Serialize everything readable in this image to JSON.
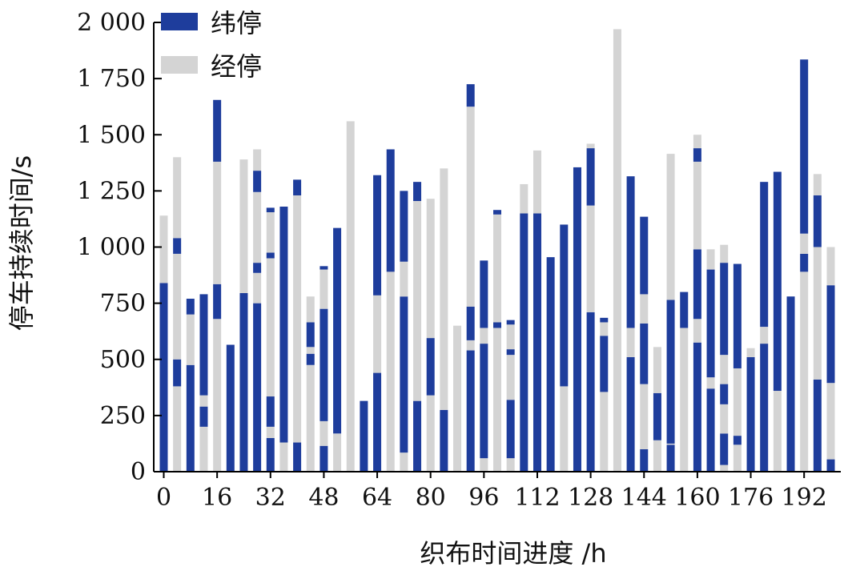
{
  "chart_data": {
    "type": "bar",
    "stacked": true,
    "xlabel": "织布时间进度 /h",
    "ylabel": "停车持续时间/s",
    "ylim": [
      0,
      2000
    ],
    "yticks": [
      0,
      250,
      500,
      750,
      1000,
      1250,
      1500,
      1750,
      2000
    ],
    "ytick_labels": [
      "0",
      "250",
      "500",
      "750",
      "1 000",
      "1 250",
      "1 500",
      "1 750",
      "2 000"
    ],
    "xticks": [
      0,
      16,
      32,
      48,
      64,
      80,
      96,
      112,
      128,
      144,
      160,
      176,
      192
    ],
    "xlim": [
      -3,
      203
    ],
    "bar_step_h": 4,
    "bar_width_h": 2.4,
    "legend": {
      "position": "top-left",
      "entries": [
        {
          "name": "纬停",
          "color": "#1e3d9c"
        },
        {
          "name": "经停",
          "color": "#d4d4d4"
        }
      ]
    },
    "colors": {
      "weft": "#1e3d9c",
      "warp": "#d4d4d4"
    },
    "bars": [
      {
        "x": 0,
        "segments": [
          {
            "type": "weft",
            "value": 840
          },
          {
            "type": "warp",
            "value": 300
          }
        ]
      },
      {
        "x": 4,
        "segments": [
          {
            "type": "warp",
            "value": 380
          },
          {
            "type": "weft",
            "value": 120
          },
          {
            "type": "warp",
            "value": 470
          },
          {
            "type": "weft",
            "value": 70
          },
          {
            "type": "warp",
            "value": 360
          }
        ]
      },
      {
        "x": 8,
        "segments": [
          {
            "type": "weft",
            "value": 475
          },
          {
            "type": "warp",
            "value": 225
          },
          {
            "type": "weft",
            "value": 70
          }
        ]
      },
      {
        "x": 12,
        "segments": [
          {
            "type": "warp",
            "value": 200
          },
          {
            "type": "weft",
            "value": 90
          },
          {
            "type": "warp",
            "value": 50
          },
          {
            "type": "weft",
            "value": 450
          }
        ]
      },
      {
        "x": 16,
        "segments": [
          {
            "type": "warp",
            "value": 680
          },
          {
            "type": "weft",
            "value": 155
          },
          {
            "type": "warp",
            "value": 545
          },
          {
            "type": "weft",
            "value": 275
          }
        ]
      },
      {
        "x": 20,
        "segments": [
          {
            "type": "weft",
            "value": 565
          }
        ]
      },
      {
        "x": 24,
        "segments": [
          {
            "type": "weft",
            "value": 795
          },
          {
            "type": "warp",
            "value": 595
          }
        ]
      },
      {
        "x": 28,
        "segments": [
          {
            "type": "weft",
            "value": 750
          },
          {
            "type": "warp",
            "value": 135
          },
          {
            "type": "weft",
            "value": 45
          },
          {
            "type": "warp",
            "value": 315
          },
          {
            "type": "weft",
            "value": 95
          },
          {
            "type": "warp",
            "value": 95
          }
        ]
      },
      {
        "x": 32,
        "segments": [
          {
            "type": "weft",
            "value": 150
          },
          {
            "type": "warp",
            "value": 50
          },
          {
            "type": "weft",
            "value": 135
          },
          {
            "type": "warp",
            "value": 615
          },
          {
            "type": "weft",
            "value": 25
          },
          {
            "type": "warp",
            "value": 180
          },
          {
            "type": "weft",
            "value": 20
          }
        ]
      },
      {
        "x": 36,
        "segments": [
          {
            "type": "warp",
            "value": 130
          },
          {
            "type": "weft",
            "value": 1050
          }
        ]
      },
      {
        "x": 40,
        "segments": [
          {
            "type": "weft",
            "value": 130
          },
          {
            "type": "warp",
            "value": 1100
          },
          {
            "type": "weft",
            "value": 70
          }
        ]
      },
      {
        "x": 44,
        "segments": [
          {
            "type": "warp",
            "value": 475
          },
          {
            "type": "weft",
            "value": 50
          },
          {
            "type": "warp",
            "value": 30
          },
          {
            "type": "weft",
            "value": 110
          },
          {
            "type": "warp",
            "value": 115
          }
        ]
      },
      {
        "x": 48,
        "segments": [
          {
            "type": "weft",
            "value": 115
          },
          {
            "type": "warp",
            "value": 110
          },
          {
            "type": "weft",
            "value": 500
          },
          {
            "type": "warp",
            "value": 175
          },
          {
            "type": "weft",
            "value": 15
          }
        ]
      },
      {
        "x": 52,
        "segments": [
          {
            "type": "warp",
            "value": 170
          },
          {
            "type": "weft",
            "value": 915
          }
        ]
      },
      {
        "x": 56,
        "segments": [
          {
            "type": "warp",
            "value": 1560
          }
        ]
      },
      {
        "x": 60,
        "segments": [
          {
            "type": "weft",
            "value": 315
          }
        ]
      },
      {
        "x": 64,
        "segments": [
          {
            "type": "weft",
            "value": 440
          },
          {
            "type": "warp",
            "value": 345
          },
          {
            "type": "weft",
            "value": 535
          }
        ]
      },
      {
        "x": 68,
        "segments": [
          {
            "type": "warp",
            "value": 890
          },
          {
            "type": "weft",
            "value": 545
          }
        ]
      },
      {
        "x": 72,
        "segments": [
          {
            "type": "warp",
            "value": 85
          },
          {
            "type": "weft",
            "value": 695
          },
          {
            "type": "warp",
            "value": 155
          },
          {
            "type": "weft",
            "value": 315
          }
        ]
      },
      {
        "x": 76,
        "segments": [
          {
            "type": "weft",
            "value": 315
          },
          {
            "type": "warp",
            "value": 890
          },
          {
            "type": "weft",
            "value": 85
          }
        ]
      },
      {
        "x": 80,
        "segments": [
          {
            "type": "warp",
            "value": 340
          },
          {
            "type": "weft",
            "value": 255
          },
          {
            "type": "warp",
            "value": 620
          }
        ]
      },
      {
        "x": 84,
        "segments": [
          {
            "type": "weft",
            "value": 275
          },
          {
            "type": "warp",
            "value": 1075
          }
        ]
      },
      {
        "x": 88,
        "segments": [
          {
            "type": "warp",
            "value": 650
          }
        ]
      },
      {
        "x": 92,
        "segments": [
          {
            "type": "weft",
            "value": 540
          },
          {
            "type": "warp",
            "value": 45
          },
          {
            "type": "weft",
            "value": 150
          },
          {
            "type": "warp",
            "value": 890
          },
          {
            "type": "weft",
            "value": 100
          }
        ]
      },
      {
        "x": 96,
        "segments": [
          {
            "type": "warp",
            "value": 60
          },
          {
            "type": "weft",
            "value": 510
          },
          {
            "type": "warp",
            "value": 70
          },
          {
            "type": "weft",
            "value": 300
          }
        ]
      },
      {
        "x": 100,
        "segments": [
          {
            "type": "warp",
            "value": 640
          },
          {
            "type": "weft",
            "value": 25
          },
          {
            "type": "warp",
            "value": 480
          },
          {
            "type": "weft",
            "value": 20
          }
        ]
      },
      {
        "x": 104,
        "segments": [
          {
            "type": "warp",
            "value": 60
          },
          {
            "type": "weft",
            "value": 260
          },
          {
            "type": "warp",
            "value": 200
          },
          {
            "type": "weft",
            "value": 25
          },
          {
            "type": "warp",
            "value": 110
          },
          {
            "type": "weft",
            "value": 20
          }
        ]
      },
      {
        "x": 108,
        "segments": [
          {
            "type": "weft",
            "value": 1150
          },
          {
            "type": "warp",
            "value": 130
          }
        ]
      },
      {
        "x": 112,
        "segments": [
          {
            "type": "weft",
            "value": 1150
          },
          {
            "type": "warp",
            "value": 280
          }
        ]
      },
      {
        "x": 116,
        "segments": [
          {
            "type": "weft",
            "value": 955
          }
        ]
      },
      {
        "x": 120,
        "segments": [
          {
            "type": "warp",
            "value": 380
          },
          {
            "type": "weft",
            "value": 720
          }
        ]
      },
      {
        "x": 124,
        "segments": [
          {
            "type": "weft",
            "value": 1355
          }
        ]
      },
      {
        "x": 128,
        "segments": [
          {
            "type": "weft",
            "value": 710
          },
          {
            "type": "warp",
            "value": 475
          },
          {
            "type": "weft",
            "value": 255
          },
          {
            "type": "warp",
            "value": 20
          }
        ]
      },
      {
        "x": 132,
        "segments": [
          {
            "type": "warp",
            "value": 355
          },
          {
            "type": "weft",
            "value": 250
          },
          {
            "type": "warp",
            "value": 60
          },
          {
            "type": "weft",
            "value": 20
          }
        ]
      },
      {
        "x": 136,
        "segments": [
          {
            "type": "warp",
            "value": 1970
          }
        ]
      },
      {
        "x": 140,
        "segments": [
          {
            "type": "weft",
            "value": 510
          },
          {
            "type": "warp",
            "value": 130
          },
          {
            "type": "weft",
            "value": 675
          }
        ]
      },
      {
        "x": 144,
        "segments": [
          {
            "type": "weft",
            "value": 100
          },
          {
            "type": "warp",
            "value": 290
          },
          {
            "type": "weft",
            "value": 270
          },
          {
            "type": "warp",
            "value": 130
          },
          {
            "type": "weft",
            "value": 345
          }
        ]
      },
      {
        "x": 148,
        "segments": [
          {
            "type": "warp",
            "value": 140
          },
          {
            "type": "weft",
            "value": 210
          },
          {
            "type": "warp",
            "value": 205
          }
        ]
      },
      {
        "x": 152,
        "segments": [
          {
            "type": "weft",
            "value": 120
          },
          {
            "type": "warp",
            "value": 5
          },
          {
            "type": "weft",
            "value": 640
          },
          {
            "type": "warp",
            "value": 650
          }
        ]
      },
      {
        "x": 156,
        "segments": [
          {
            "type": "warp",
            "value": 640
          },
          {
            "type": "weft",
            "value": 160
          }
        ]
      },
      {
        "x": 160,
        "segments": [
          {
            "type": "weft",
            "value": 575
          },
          {
            "type": "warp",
            "value": 105
          },
          {
            "type": "weft",
            "value": 310
          },
          {
            "type": "warp",
            "value": 390
          },
          {
            "type": "weft",
            "value": 60
          },
          {
            "type": "warp",
            "value": 60
          }
        ]
      },
      {
        "x": 164,
        "segments": [
          {
            "type": "weft",
            "value": 370
          },
          {
            "type": "warp",
            "value": 50
          },
          {
            "type": "weft",
            "value": 480
          },
          {
            "type": "warp",
            "value": 90
          }
        ]
      },
      {
        "x": 168,
        "segments": [
          {
            "type": "warp",
            "value": 30
          },
          {
            "type": "weft",
            "value": 140
          },
          {
            "type": "warp",
            "value": 130
          },
          {
            "type": "weft",
            "value": 90
          },
          {
            "type": "warp",
            "value": 130
          },
          {
            "type": "weft",
            "value": 410
          },
          {
            "type": "warp",
            "value": 80
          }
        ]
      },
      {
        "x": 172,
        "segments": [
          {
            "type": "warp",
            "value": 120
          },
          {
            "type": "weft",
            "value": 40
          },
          {
            "type": "warp",
            "value": 300
          },
          {
            "type": "weft",
            "value": 465
          }
        ]
      },
      {
        "x": 176,
        "segments": [
          {
            "type": "weft",
            "value": 510
          },
          {
            "type": "warp",
            "value": 40
          }
        ]
      },
      {
        "x": 180,
        "segments": [
          {
            "type": "weft",
            "value": 570
          },
          {
            "type": "warp",
            "value": 75
          },
          {
            "type": "weft",
            "value": 645
          }
        ]
      },
      {
        "x": 184,
        "segments": [
          {
            "type": "warp",
            "value": 360
          },
          {
            "type": "weft",
            "value": 975
          }
        ]
      },
      {
        "x": 188,
        "segments": [
          {
            "type": "weft",
            "value": 780
          }
        ]
      },
      {
        "x": 192,
        "segments": [
          {
            "type": "warp",
            "value": 890
          },
          {
            "type": "weft",
            "value": 80
          },
          {
            "type": "warp",
            "value": 90
          },
          {
            "type": "weft",
            "value": 775
          }
        ]
      },
      {
        "x": 196,
        "segments": [
          {
            "type": "weft",
            "value": 410
          },
          {
            "type": "warp",
            "value": 590
          },
          {
            "type": "weft",
            "value": 230
          },
          {
            "type": "warp",
            "value": 95
          }
        ]
      },
      {
        "x": 200,
        "segments": [
          {
            "type": "weft",
            "value": 55
          },
          {
            "type": "warp",
            "value": 340
          },
          {
            "type": "weft",
            "value": 435
          },
          {
            "type": "warp",
            "value": 170
          }
        ]
      }
    ]
  }
}
